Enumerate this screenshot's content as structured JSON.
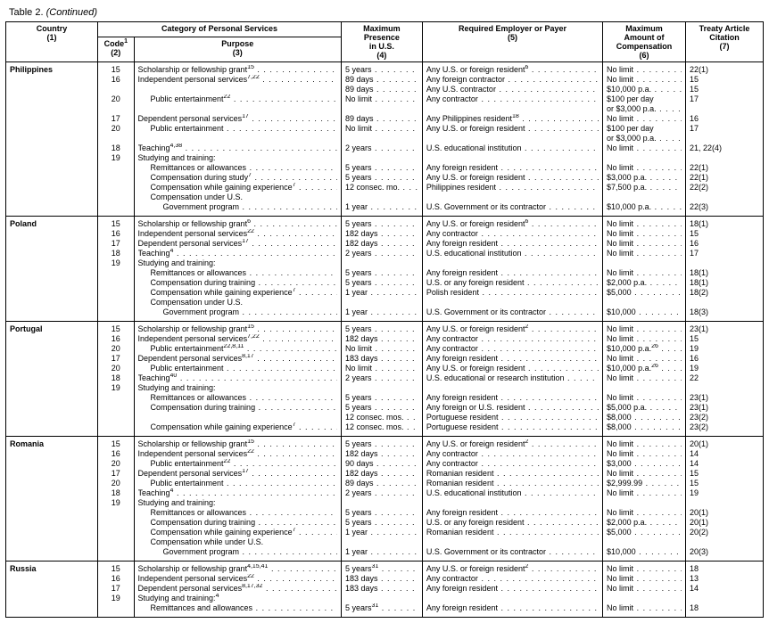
{
  "title_prefix": "Table 2.",
  "title_suffix": "(Continued)",
  "headers": {
    "country": "Country",
    "country_n": "(1)",
    "category": "Category of Personal Services",
    "code": "Code",
    "code_sup": "1",
    "code_n": "(2)",
    "purpose": "Purpose",
    "purpose_n": "(3)",
    "presence": "Maximum\nPresence\nin U.S.",
    "presence_n": "(4)",
    "employer": "Required Employer or Payer",
    "employer_n": "(5)",
    "comp": "Maximum\nAmount of\nCompensation",
    "comp_n": "(6)",
    "cite": "Treaty Article\nCitation",
    "cite_n": "(7)"
  },
  "sections": [
    {
      "country": "Philippines",
      "rows": [
        {
          "code": "15",
          "purpose": "Scholarship or fellowship grant",
          "psup": "15",
          "presence": "5 years",
          "employer": "Any U.S. or foreign resident",
          "esup": "6",
          "comp": "No limit",
          "cite": "22(1)"
        },
        {
          "code": "16",
          "purpose": "Independent personal services",
          "psup": "7,22",
          "presence": "89 days",
          "employer": "Any foreign contractor",
          "comp": "No limit",
          "cite": "15"
        },
        {
          "code": "",
          "purpose": "",
          "presence": "89 days",
          "employer": "Any U.S. contractor",
          "comp": "$10,000 p.a.",
          "cite": "15",
          "nopurpose": true
        },
        {
          "code": "20",
          "purpose": "Public entertainment",
          "psup": "22",
          "indent": 1,
          "presence": "No limit",
          "employer": "Any contractor",
          "comp": "$100 per day or $3,000 p.a.",
          "cite": "17",
          "twoline": true
        },
        {
          "code": "17",
          "purpose": "Dependent personal services",
          "psup": "17",
          "presence": "89 days",
          "employer": "Any Philippines resident",
          "esup": "18",
          "comp": "No limit",
          "cite": "16"
        },
        {
          "code": "20",
          "purpose": "Public entertainment",
          "indent": 1,
          "presence": "No limit",
          "employer": "Any U.S. or foreign resident",
          "comp": "$100 per day or $3,000 p.a.",
          "cite": "17",
          "twoline": true
        },
        {
          "code": "18",
          "purpose": "Teaching",
          "psup": "4,38",
          "presence": "2 years",
          "employer": "U.S. educational institution",
          "comp": "No limit",
          "cite": "21, 22(4)"
        },
        {
          "code": "19",
          "purpose": "Studying and training:",
          "presence": "",
          "employer": "",
          "comp": "",
          "cite": "",
          "plain": true
        },
        {
          "code": "",
          "purpose": "Remittances or allowances",
          "indent": 1,
          "presence": "5 years",
          "employer": "Any foreign resident",
          "comp": "No limit",
          "cite": "22(1)"
        },
        {
          "code": "",
          "purpose": "Compensation during study",
          "psup": "7",
          "indent": 1,
          "presence": "5 years",
          "employer": "Any U.S. or foreign resident",
          "comp": "$3,000 p.a.",
          "cite": "22(1)"
        },
        {
          "code": "",
          "purpose": "Compensation while gaining experience",
          "psup": "7",
          "indent": 1,
          "presence": "12 consec. mo.",
          "employer": "Philippines resident",
          "comp": "$7,500 p.a.",
          "cite": "22(2)"
        },
        {
          "code": "",
          "purpose": "Compensation under U.S.",
          "indent": 1,
          "presence": "",
          "employer": "",
          "comp": "",
          "cite": "",
          "plain": true
        },
        {
          "code": "",
          "purpose": "Government program",
          "indent": 2,
          "presence": "1 year",
          "employer": "U.S. Government or its contractor",
          "comp": "$10,000 p.a.",
          "cite": "22(3)"
        }
      ]
    },
    {
      "country": "Poland",
      "rows": [
        {
          "code": "15",
          "purpose": "Scholarship or fellowship grant",
          "psup": "6",
          "presence": "5 years",
          "employer": "Any U.S. or foreign resident",
          "esup": "6",
          "comp": "No limit",
          "cite": "18(1)"
        },
        {
          "code": "16",
          "purpose": "Independent personal services",
          "psup": "22",
          "presence": "182 days",
          "employer": "Any contractor",
          "comp": "No limit",
          "cite": "15"
        },
        {
          "code": "17",
          "purpose": "Dependent personal services",
          "psup": "17",
          "presence": "182 days",
          "employer": "Any foreign resident",
          "comp": "No limit",
          "cite": "16"
        },
        {
          "code": "18",
          "purpose": "Teaching",
          "psup": "4",
          "presence": "2 years",
          "employer": "U.S. educational institution",
          "comp": "No limit",
          "cite": "17"
        },
        {
          "code": "19",
          "purpose": "Studying and training:",
          "presence": "",
          "employer": "",
          "comp": "",
          "cite": "",
          "plain": true
        },
        {
          "code": "",
          "purpose": "Remittances or allowances",
          "indent": 1,
          "presence": "5 years",
          "employer": "Any foreign resident",
          "comp": "No limit",
          "cite": "18(1)"
        },
        {
          "code": "",
          "purpose": "Compensation during training",
          "indent": 1,
          "presence": "5 years",
          "employer": "U.S. or any foreign resident",
          "comp": "$2,000 p.a.",
          "cite": "18(1)"
        },
        {
          "code": "",
          "purpose": "Compensation while gaining experience",
          "psup": "7",
          "indent": 1,
          "presence": "1 year",
          "employer": "Polish resident",
          "comp": "$5,000",
          "cite": "18(2)"
        },
        {
          "code": "",
          "purpose": "Compensation under U.S.",
          "indent": 1,
          "presence": "",
          "employer": "",
          "comp": "",
          "cite": "",
          "plain": true
        },
        {
          "code": "",
          "purpose": "Government program",
          "indent": 2,
          "presence": "1 year",
          "employer": "U.S. Government or its contractor",
          "comp": "$10,000",
          "cite": "18(3)"
        }
      ]
    },
    {
      "country": "Portugal",
      "rows": [
        {
          "code": "15",
          "purpose": "Scholarship or fellowship grant",
          "psup": "15",
          "presence": "5 years",
          "employer": "Any U.S. or foreign resident",
          "esup": "2",
          "comp": "No limit",
          "cite": "23(1)"
        },
        {
          "code": "16",
          "purpose": "Independent personal services",
          "psup": "7,22",
          "presence": "182 days",
          "employer": "Any contractor",
          "comp": "No limit",
          "cite": "15"
        },
        {
          "code": "20",
          "purpose": "Public entertainment",
          "psup": "22,8,11",
          "indent": 1,
          "presence": "No limit",
          "employer": "Any contractor",
          "comp": "$10,000 p.a.",
          "csup": "26",
          "cite": "19"
        },
        {
          "code": "17",
          "purpose": "Dependent personal services",
          "psup": "8,17",
          "presence": "183 days",
          "employer": "Any foreign resident",
          "comp": "No limit",
          "cite": "16"
        },
        {
          "code": "20",
          "purpose": "Public entertainment",
          "indent": 1,
          "presence": "No limit",
          "employer": "Any U.S. or foreign resident",
          "comp": "$10,000 p.a.",
          "csup": "26",
          "cite": "19"
        },
        {
          "code": "18",
          "purpose": "Teaching",
          "psup": "40",
          "presence": "2 years",
          "employer": "U.S. educational or research institution",
          "comp": "No limit",
          "cite": "22"
        },
        {
          "code": "19",
          "purpose": "Studying and training:",
          "presence": "",
          "employer": "",
          "comp": "",
          "cite": "",
          "plain": true
        },
        {
          "code": "",
          "purpose": "Remittances or allowances",
          "indent": 1,
          "presence": "5 years",
          "employer": "Any foreign resident",
          "comp": "No limit",
          "cite": "23(1)"
        },
        {
          "code": "",
          "purpose": "Compensation during training",
          "indent": 1,
          "presence": "5 years",
          "employer": "Any foreign or U.S. resident",
          "comp": "$5,000 p.a.",
          "cite": "23(1)"
        },
        {
          "code": "",
          "purpose": "",
          "presence": "12 consec. mos.",
          "employer": "Portuguese resident",
          "comp": "$8,000",
          "cite": "23(2)",
          "nopurpose": true
        },
        {
          "code": "",
          "purpose": "Compensation while gaining experience",
          "psup": "7",
          "indent": 1,
          "presence": "12 consec. mos.",
          "employer": "Portuguese resident",
          "comp": "$8,000",
          "cite": "23(2)"
        }
      ]
    },
    {
      "country": "Romania",
      "rows": [
        {
          "code": "15",
          "purpose": "Scholarship or fellowship grant",
          "psup": "15",
          "presence": "5 years",
          "employer": "Any U.S. or foreign resident",
          "esup": "2",
          "comp": "No limit",
          "cite": "20(1)"
        },
        {
          "code": "16",
          "purpose": "Independent personal services",
          "psup": "22",
          "presence": "182 days",
          "employer": "Any contractor",
          "comp": "No limit",
          "cite": "14"
        },
        {
          "code": "20",
          "purpose": "Public entertainment",
          "psup": "22",
          "indent": 1,
          "presence": "90 days",
          "employer": "Any contractor",
          "comp": "$3,000",
          "cite": "14"
        },
        {
          "code": "17",
          "purpose": "Dependent personal services",
          "psup": "17",
          "presence": "182 days",
          "employer": "Romanian resident",
          "comp": "No limit",
          "cite": "15"
        },
        {
          "code": "20",
          "purpose": "Public entertainment",
          "indent": 1,
          "presence": "89 days",
          "employer": "Romanian resident",
          "comp": "$2,999.99",
          "cite": "15"
        },
        {
          "code": "18",
          "purpose": "Teaching",
          "psup": "4",
          "presence": "2 years",
          "employer": "U.S. educational institution",
          "comp": "No limit",
          "cite": "19"
        },
        {
          "code": "19",
          "purpose": "Studying and training:",
          "presence": "",
          "employer": "",
          "comp": "",
          "cite": "",
          "plain": true
        },
        {
          "code": "",
          "purpose": "Remittances or allowances",
          "indent": 1,
          "presence": "5 years",
          "employer": "Any foreign resident",
          "comp": "No limit",
          "cite": "20(1)"
        },
        {
          "code": "",
          "purpose": "Compensation during training",
          "indent": 1,
          "presence": "5 years",
          "employer": "U.S. or any foreign resident",
          "comp": "$2,000 p.a.",
          "cite": "20(1)"
        },
        {
          "code": "",
          "purpose": "Compensation while gaining experience",
          "psup": "7",
          "indent": 1,
          "presence": "1 year",
          "employer": "Romanian resident",
          "comp": "$5,000",
          "cite": "20(2)"
        },
        {
          "code": "",
          "purpose": "Compensation while under U.S.",
          "indent": 1,
          "presence": "",
          "employer": "",
          "comp": "",
          "cite": "",
          "plain": true
        },
        {
          "code": "",
          "purpose": "Government program",
          "indent": 2,
          "presence": "1 year",
          "employer": "U.S. Government or its contractor",
          "comp": "$10,000",
          "cite": "20(3)"
        }
      ]
    },
    {
      "country": "Russia",
      "rows": [
        {
          "code": "15",
          "purpose": "Scholarship or fellowship grant",
          "psup": "4,15,41",
          "presence": "5 years",
          "prsup": "31",
          "employer": "Any U.S. or foreign resident",
          "esup": "2",
          "comp": "No limit",
          "cite": "18"
        },
        {
          "code": "16",
          "purpose": "Independent personal services",
          "psup": "22",
          "presence": "183 days",
          "employer": "Any contractor",
          "comp": "No limit",
          "cite": "13"
        },
        {
          "code": "17",
          "purpose": "Dependent personal services",
          "psup": "8,17,32",
          "presence": "183 days",
          "employer": "Any foreign resident",
          "comp": "No limit",
          "cite": "14"
        },
        {
          "code": "19",
          "purpose": "Studying and training:",
          "psup": "4",
          "presence": "",
          "employer": "",
          "comp": "",
          "cite": "",
          "plain": true
        },
        {
          "code": "",
          "purpose": "Remittances and allowances",
          "indent": 1,
          "presence": "5 years",
          "prsup": "31",
          "employer": "Any foreign resident",
          "comp": "No limit",
          "cite": "18"
        }
      ]
    }
  ]
}
